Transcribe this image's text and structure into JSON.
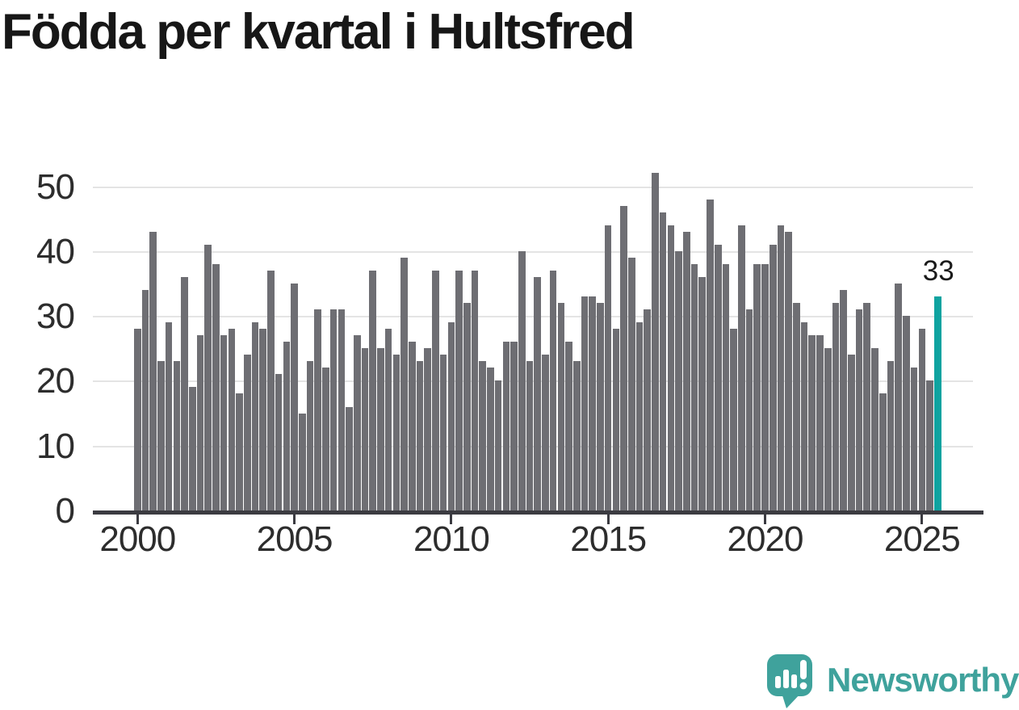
{
  "title": "Födda per kvartal i Hultsfred",
  "annotation": {
    "label": "33"
  },
  "logo": {
    "text": "Newsworthy",
    "icon": "newsworthy-speech-bubble-chart-icon"
  },
  "colors": {
    "bar": "#6e6e73",
    "highlight": "#0fa3a0",
    "gridline": "#e4e4e4",
    "axis": "#3b3b41",
    "text": "#2d2d2d",
    "title_text": "#171717",
    "logo_teal": "#3fa29c",
    "background": "#ffffff"
  },
  "chart_data": {
    "type": "bar",
    "title": "Födda per kvartal i Hultsfred",
    "xlabel": "",
    "ylabel": "",
    "ylim": [
      0,
      52
    ],
    "yticks": [
      0,
      10,
      20,
      30,
      40,
      50
    ],
    "xticks": [
      "2000",
      "2005",
      "2010",
      "2015",
      "2020",
      "2025"
    ],
    "grid": true,
    "legend": false,
    "categories": [
      "2000 Q1",
      "2000 Q2",
      "2000 Q3",
      "2000 Q4",
      "2001 Q1",
      "2001 Q2",
      "2001 Q3",
      "2001 Q4",
      "2002 Q1",
      "2002 Q2",
      "2002 Q3",
      "2002 Q4",
      "2003 Q1",
      "2003 Q2",
      "2003 Q3",
      "2003 Q4",
      "2004 Q1",
      "2004 Q2",
      "2004 Q3",
      "2004 Q4",
      "2005 Q1",
      "2005 Q2",
      "2005 Q3",
      "2005 Q4",
      "2006 Q1",
      "2006 Q2",
      "2006 Q3",
      "2006 Q4",
      "2007 Q1",
      "2007 Q2",
      "2007 Q3",
      "2007 Q4",
      "2008 Q1",
      "2008 Q2",
      "2008 Q3",
      "2008 Q4",
      "2009 Q1",
      "2009 Q2",
      "2009 Q3",
      "2009 Q4",
      "2010 Q1",
      "2010 Q2",
      "2010 Q3",
      "2010 Q4",
      "2011 Q1",
      "2011 Q2",
      "2011 Q3",
      "2011 Q4",
      "2012 Q1",
      "2012 Q2",
      "2012 Q3",
      "2012 Q4",
      "2013 Q1",
      "2013 Q2",
      "2013 Q3",
      "2013 Q4",
      "2014 Q1",
      "2014 Q2",
      "2014 Q3",
      "2014 Q4",
      "2015 Q1",
      "2015 Q2",
      "2015 Q3",
      "2015 Q4",
      "2016 Q1",
      "2016 Q2",
      "2016 Q3",
      "2016 Q4",
      "2017 Q1",
      "2017 Q2",
      "2017 Q3",
      "2017 Q4",
      "2018 Q1",
      "2018 Q2",
      "2018 Q3",
      "2018 Q4",
      "2019 Q1",
      "2019 Q2",
      "2019 Q3",
      "2019 Q4",
      "2020 Q1",
      "2020 Q2",
      "2020 Q3",
      "2020 Q4",
      "2021 Q1",
      "2021 Q2",
      "2021 Q3",
      "2021 Q4",
      "2022 Q1",
      "2022 Q2",
      "2022 Q3",
      "2022 Q4",
      "2023 Q1",
      "2023 Q2",
      "2023 Q3",
      "2023 Q4",
      "2024 Q1",
      "2024 Q2",
      "2024 Q3",
      "2024 Q4",
      "2025 Q1",
      "2025 Q2",
      "2025 Q3"
    ],
    "values": [
      28,
      34,
      43,
      23,
      29,
      23,
      36,
      19,
      27,
      41,
      38,
      27,
      28,
      18,
      24,
      29,
      28,
      37,
      21,
      26,
      35,
      15,
      23,
      31,
      22,
      31,
      31,
      16,
      27,
      25,
      37,
      25,
      28,
      24,
      39,
      26,
      23,
      25,
      37,
      24,
      29,
      37,
      32,
      37,
      23,
      22,
      20,
      26,
      26,
      40,
      23,
      36,
      24,
      37,
      32,
      26,
      23,
      33,
      33,
      32,
      44,
      28,
      47,
      39,
      29,
      31,
      52,
      46,
      44,
      40,
      43,
      38,
      36,
      48,
      41,
      38,
      28,
      44,
      31,
      38,
      38,
      41,
      44,
      43,
      32,
      29,
      27,
      27,
      25,
      32,
      34,
      24,
      31,
      32,
      25,
      18,
      23,
      35,
      30,
      22,
      28,
      20,
      33
    ],
    "highlight": {
      "index": 102,
      "category": "2025 Q3",
      "value": 33,
      "label": "33",
      "color": "#0fa3a0"
    }
  }
}
